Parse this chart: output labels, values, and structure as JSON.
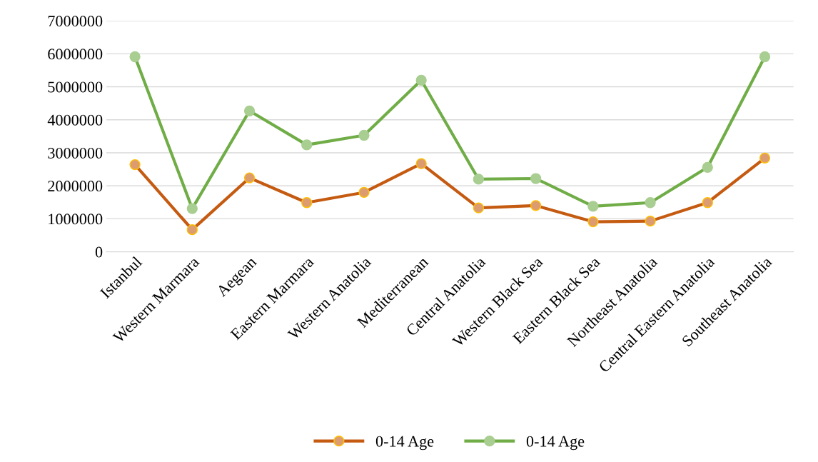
{
  "chart_data": {
    "type": "line",
    "categories": [
      "Istanbul",
      "Western Marmara",
      "Aegean",
      "Eastern Marmara",
      "Western Anatolia",
      "Mediterranean",
      "Central Anatolia",
      "Western Black Sea",
      "Eastern Black Sea",
      "Northeast Anatolia",
      "Central Eastern Anatolia",
      "Southeast Anatolia"
    ],
    "series": [
      {
        "name": "0-14 Age",
        "color": "#c55a11",
        "values": [
          2640000,
          670000,
          2240000,
          1490000,
          1800000,
          2670000,
          1330000,
          1400000,
          910000,
          930000,
          1490000,
          2840000
        ]
      },
      {
        "name": "0-14 Age",
        "color": "#70ad47",
        "values": [
          5910000,
          1310000,
          4270000,
          3240000,
          3530000,
          5200000,
          2200000,
          2220000,
          1380000,
          1490000,
          2560000,
          5910000
        ]
      }
    ],
    "ylim": [
      0,
      7000000
    ],
    "yticks": [
      0,
      1000000,
      2000000,
      3000000,
      4000000,
      5000000,
      6000000,
      7000000
    ],
    "grid": "y",
    "legend": "bottom",
    "marker": "circle",
    "line_style": "solid"
  }
}
